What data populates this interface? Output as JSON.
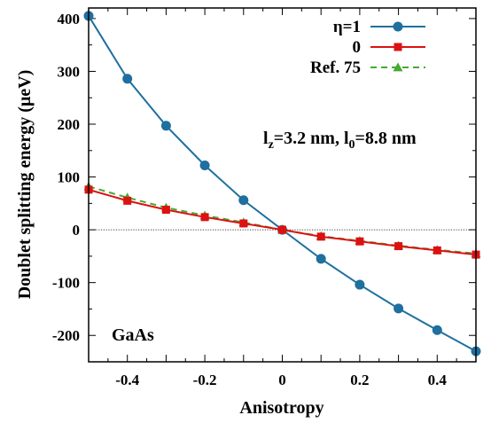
{
  "chart_data": {
    "type": "line",
    "xlabel": "Anisotropy",
    "ylabel": "Doublet splitting energy (μeV)",
    "xlim": [
      -0.5,
      0.5
    ],
    "ylim": [
      -250,
      420
    ],
    "xticks": [
      -0.4,
      -0.2,
      0,
      0.2,
      0.4
    ],
    "xtick_labels": [
      "-0.4",
      "-0.2",
      "0",
      "0.2",
      "0.4"
    ],
    "yticks": [
      -200,
      -100,
      0,
      100,
      200,
      300,
      400
    ],
    "ytick_labels": [
      "-200",
      "-100",
      "0",
      "100",
      "200",
      "300",
      "400"
    ],
    "zero_line": true,
    "grid": false,
    "legend_position": "top-right",
    "annotations": {
      "params": {
        "l": "l",
        "z_sub": "z",
        "mid": "=3.2 nm, l",
        "zero_sub": "0",
        "end": "=8.8 nm"
      },
      "material": "GaAs"
    },
    "series": [
      {
        "name": "η=1",
        "color": "#1f6f9f",
        "marker": "circle",
        "dash": false,
        "x": [
          -0.5,
          -0.4,
          -0.3,
          -0.2,
          -0.1,
          0,
          0.1,
          0.2,
          0.3,
          0.4,
          0.5
        ],
        "values": [
          405,
          286,
          197,
          122,
          56,
          0,
          -55,
          -104,
          -149,
          -190,
          -230
        ]
      },
      {
        "name": "0",
        "color": "#dd1111",
        "marker": "square",
        "dash": false,
        "x": [
          -0.5,
          -0.4,
          -0.3,
          -0.2,
          -0.1,
          0,
          0.1,
          0.2,
          0.3,
          0.4,
          0.5
        ],
        "values": [
          76,
          55,
          38,
          24,
          12,
          0,
          -13,
          -22,
          -31,
          -39,
          -47
        ]
      },
      {
        "name": "Ref. 75",
        "color": "#44aa33",
        "marker": "triangle",
        "dash": true,
        "x": [
          -0.5,
          -0.4,
          -0.3,
          -0.2,
          -0.1,
          0,
          0.1,
          0.2,
          0.3,
          0.4,
          0.5
        ],
        "values": [
          82,
          61,
          42,
          27,
          14,
          0,
          -12,
          -21,
          -30,
          -38,
          -45
        ]
      }
    ]
  }
}
